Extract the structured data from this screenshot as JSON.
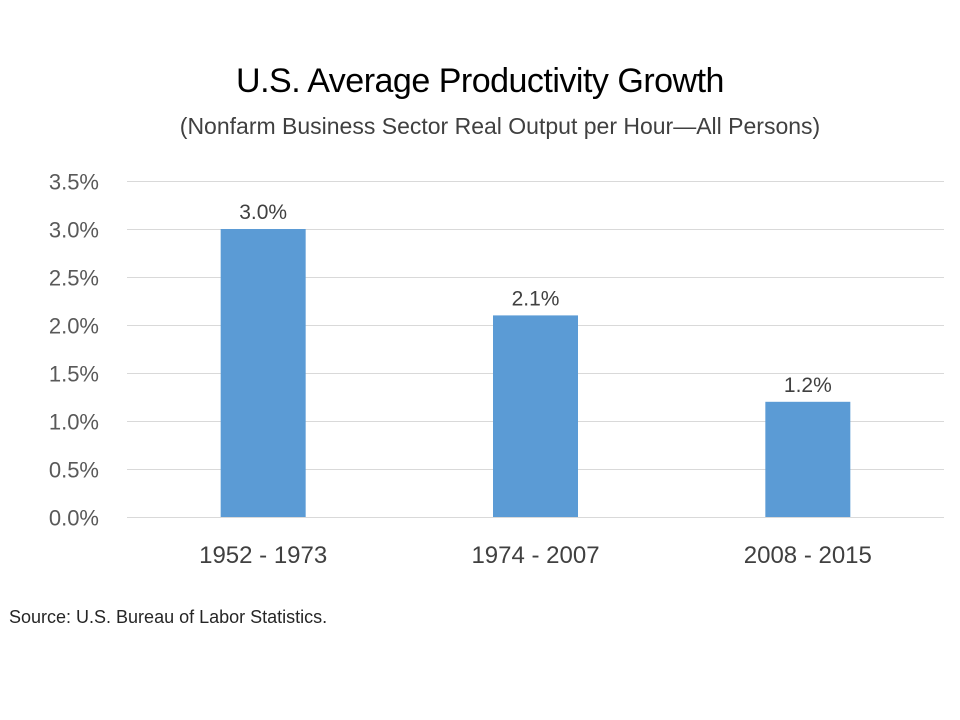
{
  "chart_data": {
    "type": "bar",
    "title": "U.S. Average Productivity Growth",
    "subtitle": "(Nonfarm Business Sector Real Output per Hour—All Persons)",
    "categories": [
      "1952 - 1973",
      "1974 - 2007",
      "2008 - 2015"
    ],
    "values": [
      3.0,
      2.1,
      1.2
    ],
    "data_labels": [
      "3.0%",
      "2.1%",
      "1.2%"
    ],
    "xlabel": "",
    "ylabel": "",
    "ylim": [
      0,
      3.5
    ],
    "yticks": [
      0,
      0.5,
      1.0,
      1.5,
      2.0,
      2.5,
      3.0,
      3.5
    ],
    "ytick_labels": [
      "0.0%",
      "0.5%",
      "1.0%",
      "1.5%",
      "2.0%",
      "2.5%",
      "3.0%",
      "3.5%"
    ],
    "grid": true,
    "legend": "none",
    "bar_color": "#5b9bd5",
    "source": "Source:  U.S. Bureau of Labor Statistics."
  }
}
